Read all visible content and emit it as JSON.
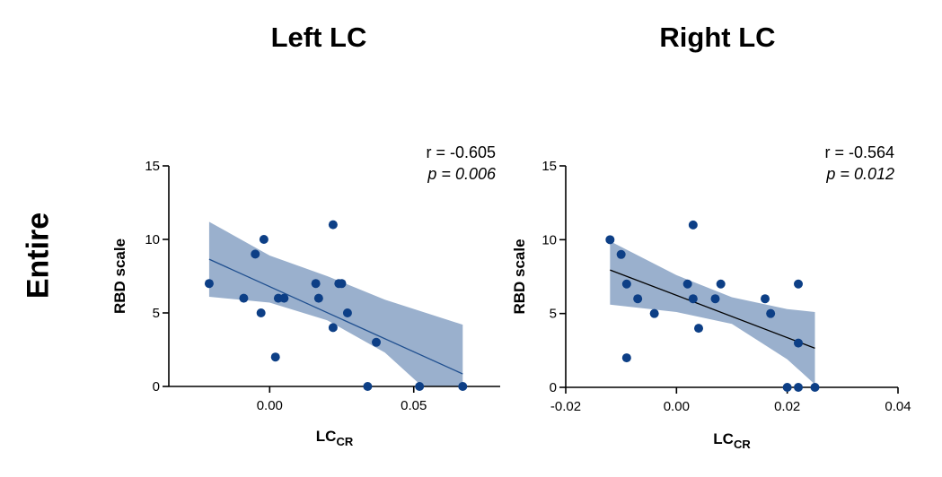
{
  "row_label": "Entire",
  "chart_data": [
    {
      "type": "scatter",
      "title": "Left LC",
      "xlabel": "LC",
      "xlabel_sub": "CR",
      "ylabel": "RBD scale",
      "xlim": [
        -0.035,
        0.08
      ],
      "ylim": [
        0,
        15
      ],
      "xticks": [
        0.0,
        0.05
      ],
      "xtick_labels": [
        "0.00",
        "0.05"
      ],
      "yticks": [
        0,
        5,
        10,
        15
      ],
      "ytick_labels": [
        "0",
        "5",
        "10",
        "15"
      ],
      "r_text": "r = -0.605",
      "p_text": "p = 0.006",
      "points": [
        {
          "x": -0.021,
          "y": 7
        },
        {
          "x": -0.009,
          "y": 6
        },
        {
          "x": -0.005,
          "y": 9
        },
        {
          "x": -0.003,
          "y": 5
        },
        {
          "x": -0.002,
          "y": 10
        },
        {
          "x": 0.002,
          "y": 2
        },
        {
          "x": 0.003,
          "y": 6
        },
        {
          "x": 0.005,
          "y": 6
        },
        {
          "x": 0.016,
          "y": 7
        },
        {
          "x": 0.017,
          "y": 6
        },
        {
          "x": 0.022,
          "y": 4
        },
        {
          "x": 0.022,
          "y": 11
        },
        {
          "x": 0.024,
          "y": 7
        },
        {
          "x": 0.025,
          "y": 7
        },
        {
          "x": 0.027,
          "y": 5
        },
        {
          "x": 0.034,
          "y": 0
        },
        {
          "x": 0.037,
          "y": 3
        },
        {
          "x": 0.052,
          "y": 0
        },
        {
          "x": 0.067,
          "y": 0
        }
      ],
      "fit_line": [
        [
          -0.021,
          8.65
        ],
        [
          0.067,
          0.85
        ]
      ],
      "confidence_band": {
        "x": [
          -0.021,
          0.0,
          0.02,
          0.04,
          0.067
        ],
        "upper": [
          11.2,
          8.9,
          7.5,
          5.9,
          4.2
        ],
        "lower": [
          6.1,
          5.7,
          4.5,
          2.3,
          -2.5
        ]
      },
      "colors": {
        "points": "#0d3f86",
        "line": "#1f4f8f",
        "band": "#9ab0cd"
      }
    },
    {
      "type": "scatter",
      "title": "Right LC",
      "xlabel": "LC",
      "xlabel_sub": "CR",
      "ylabel": "RBD scale",
      "xlim": [
        -0.02,
        0.04
      ],
      "ylim": [
        0,
        15
      ],
      "xticks": [
        -0.02,
        0.0,
        0.02,
        0.04
      ],
      "xtick_labels": [
        "-0.02",
        "0.00",
        "0.02",
        "0.04"
      ],
      "yticks": [
        0,
        5,
        10,
        15
      ],
      "ytick_labels": [
        "0",
        "5",
        "10",
        "15"
      ],
      "r_text": "r = -0.564",
      "p_text": "p = 0.012",
      "points": [
        {
          "x": -0.012,
          "y": 10
        },
        {
          "x": -0.01,
          "y": 9
        },
        {
          "x": -0.009,
          "y": 7
        },
        {
          "x": -0.009,
          "y": 2
        },
        {
          "x": -0.007,
          "y": 6
        },
        {
          "x": -0.004,
          "y": 5
        },
        {
          "x": 0.002,
          "y": 7
        },
        {
          "x": 0.003,
          "y": 6
        },
        {
          "x": 0.003,
          "y": 11
        },
        {
          "x": 0.004,
          "y": 4
        },
        {
          "x": 0.007,
          "y": 6
        },
        {
          "x": 0.008,
          "y": 7
        },
        {
          "x": 0.016,
          "y": 6
        },
        {
          "x": 0.017,
          "y": 5
        },
        {
          "x": 0.02,
          "y": 0
        },
        {
          "x": 0.022,
          "y": 7
        },
        {
          "x": 0.022,
          "y": 3
        },
        {
          "x": 0.022,
          "y": 0
        },
        {
          "x": 0.025,
          "y": 0
        }
      ],
      "fit_line": [
        [
          -0.012,
          7.95
        ],
        [
          0.025,
          2.65
        ]
      ],
      "confidence_band": {
        "x": [
          -0.012,
          0.0,
          0.01,
          0.02,
          0.025
        ],
        "upper": [
          9.9,
          7.6,
          6.1,
          5.3,
          5.1
        ],
        "lower": [
          5.6,
          5.1,
          4.3,
          1.9,
          0.2
        ]
      },
      "colors": {
        "points": "#0d3f86",
        "line": "#000000",
        "band": "#9ab0cd"
      }
    }
  ]
}
